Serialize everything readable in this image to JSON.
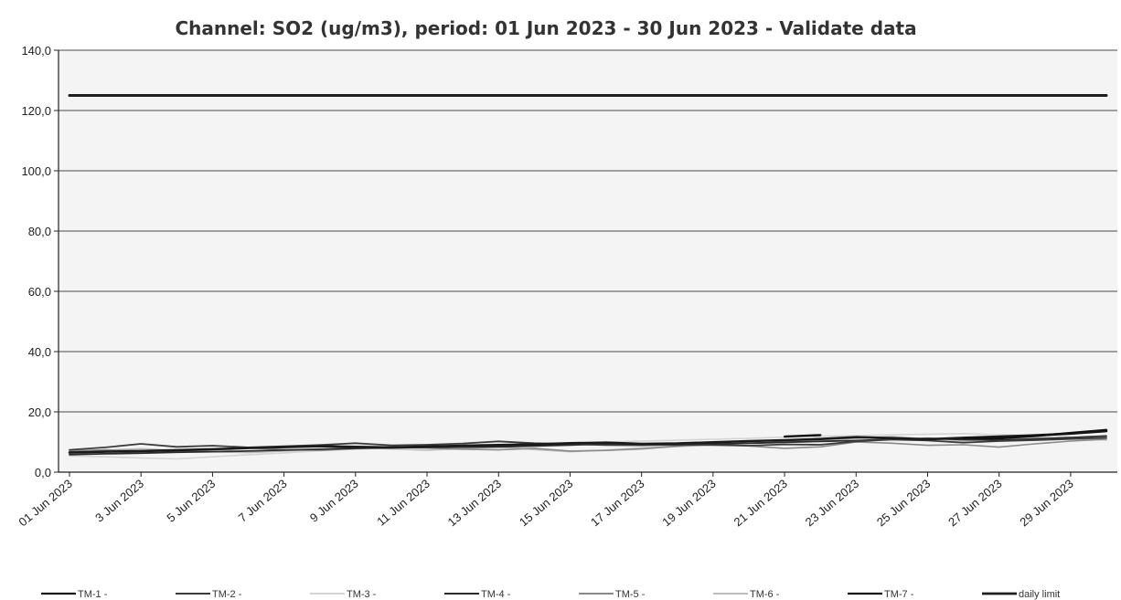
{
  "chart_data": {
    "type": "line",
    "title": "Channel: SO2 (ug/m3), period: 01 Jun 2023 - 30 Jun 2023 - Validate data",
    "xlabel": "",
    "ylabel": "",
    "ylim": [
      0,
      140
    ],
    "grid": true,
    "legend_position": "bottom",
    "y_ticks": [
      "0,0",
      "20,0",
      "40,0",
      "60,0",
      "80,0",
      "100,0",
      "120,0",
      "140,0"
    ],
    "x_tick_labels": [
      "01 Jun 2023",
      "3 Jun 2023",
      "5 Jun 2023",
      "7 Jun 2023",
      "9 Jun 2023",
      "11 Jun 2023",
      "13 Jun 2023",
      "15 Jun 2023",
      "17 Jun 2023",
      "19 Jun 2023",
      "21 Jun 2023",
      "23 Jun 2023",
      "25 Jun 2023",
      "27 Jun 2023",
      "29 Jun 2023"
    ],
    "x": [
      "01 Jun 2023",
      "2 Jun 2023",
      "3 Jun 2023",
      "4 Jun 2023",
      "5 Jun 2023",
      "6 Jun 2023",
      "7 Jun 2023",
      "8 Jun 2023",
      "9 Jun 2023",
      "10 Jun 2023",
      "11 Jun 2023",
      "12 Jun 2023",
      "13 Jun 2023",
      "14 Jun 2023",
      "15 Jun 2023",
      "16 Jun 2023",
      "17 Jun 2023",
      "18 Jun 2023",
      "19 Jun 2023",
      "20 Jun 2023",
      "21 Jun 2023",
      "22 Jun 2023",
      "23 Jun 2023",
      "24 Jun 2023",
      "25 Jun 2023",
      "26 Jun 2023",
      "27 Jun 2023",
      "28 Jun 2023",
      "29 Jun 2023",
      "30 Jun 2023"
    ],
    "series": [
      {
        "name": "TM-1 -",
        "color": "#1a1a1a",
        "width": 2.6,
        "values": [
          6.5,
          6.8,
          7.0,
          7.3,
          7.6,
          8.0,
          8.3,
          8.6,
          8.4,
          8.2,
          8.5,
          8.8,
          9.0,
          9.2,
          9.6,
          9.8,
          9.4,
          9.5,
          9.9,
          10.3,
          10.6,
          11.0,
          11.6,
          11.3,
          10.9,
          11.4,
          11.8,
          12.2,
          12.8,
          13.6
        ]
      },
      {
        "name": "TM-2 -",
        "color": "#3c3c3c",
        "width": 1.8,
        "values": [
          7.4,
          8.2,
          9.4,
          8.4,
          8.8,
          8.2,
          8.6,
          9.0,
          9.6,
          8.9,
          9.1,
          9.5,
          10.2,
          9.6,
          9.3,
          9.0,
          8.9,
          9.1,
          9.0,
          8.8,
          9.2,
          9.1,
          10.2,
          10.8,
          10.5,
          9.8,
          10.3,
          10.6,
          11.0,
          11.4
        ]
      },
      {
        "name": "TM-3 -",
        "color": "#d4d4d4",
        "width": 1.6,
        "values": [
          5.4,
          5.1,
          4.7,
          4.4,
          5.1,
          5.8,
          6.4,
          7.1,
          7.6,
          8.1,
          8.4,
          8.7,
          9.0,
          9.4,
          9.7,
          10.0,
          10.3,
          10.6,
          10.9,
          11.2,
          11.6,
          11.9,
          12.1,
          12.4,
          12.6,
          12.8,
          12.4,
          12.1,
          11.6,
          11.2
        ]
      },
      {
        "name": "TM-4 -",
        "color": "#2a2a2a",
        "width": 1.8,
        "values": [
          5.8,
          6.1,
          6.3,
          6.6,
          6.8,
          7.0,
          7.3,
          7.6,
          7.9,
          8.1,
          8.2,
          8.3,
          8.4,
          8.7,
          9.0,
          9.3,
          9.1,
          9.0,
          9.3,
          9.6,
          9.9,
          10.2,
          10.5,
          10.9,
          11.2,
          10.8,
          10.6,
          11.0,
          11.5,
          12.0
        ]
      },
      {
        "name": "TM-5 -",
        "color": "#8a8a8a",
        "width": 1.6,
        "values": [
          7.0,
          7.4,
          7.1,
          6.9,
          7.6,
          8.0,
          7.5,
          7.2,
          7.8,
          8.3,
          8.0,
          7.6,
          7.4,
          7.9,
          7.0,
          7.2,
          7.7,
          8.6,
          9.2,
          8.7,
          7.9,
          8.4,
          10.0,
          9.6,
          8.9,
          9.1,
          8.3,
          9.4,
          10.3,
          10.9
        ]
      },
      {
        "name": "TM-6 -",
        "color": "#bdbdbd",
        "width": 1.6,
        "values": [
          6.9,
          7.3,
          7.8,
          7.2,
          6.8,
          6.5,
          7.0,
          7.6,
          8.1,
          7.7,
          7.3,
          7.8,
          8.4,
          7.5,
          6.8,
          7.3,
          8.0,
          8.5,
          9.1,
          9.6,
          10.0,
          10.5,
          11.2,
          11.8,
          11.0,
          10.4,
          10.9,
          11.5,
          11.1,
          10.7
        ]
      },
      {
        "name": "TM-7 -",
        "color": "#111111",
        "width": 2.4,
        "values": [
          null,
          null,
          null,
          null,
          null,
          null,
          null,
          null,
          null,
          null,
          null,
          null,
          null,
          null,
          null,
          null,
          null,
          null,
          null,
          null,
          11.8,
          12.3,
          null,
          null,
          null,
          11.3,
          11.2,
          12.0,
          13.0,
          14.0
        ]
      },
      {
        "name": "daily limit",
        "color": "#1e1e1e",
        "width": 3,
        "values": [
          125,
          125,
          125,
          125,
          125,
          125,
          125,
          125,
          125,
          125,
          125,
          125,
          125,
          125,
          125,
          125,
          125,
          125,
          125,
          125,
          125,
          125,
          125,
          125,
          125,
          125,
          125,
          125,
          125,
          125
        ]
      }
    ]
  }
}
